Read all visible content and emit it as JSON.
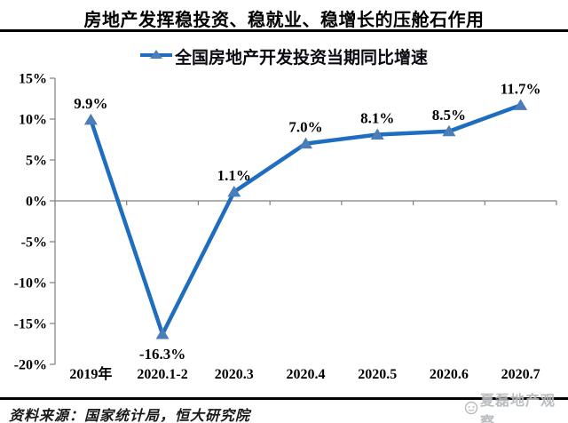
{
  "header": {
    "title": "房地产发挥稳投资、稳就业、稳增长的压舱石作用"
  },
  "legend": {
    "label": "全国房地产开发投资当期同比增速"
  },
  "chart_data": {
    "type": "line",
    "title": "房地产发挥稳投资、稳就业、稳增长的压舱石作用",
    "legend": "全国房地产开发投资当期同比增速",
    "categories": [
      "2019年",
      "2020.1-2",
      "2020.3",
      "2020.4",
      "2020.5",
      "2020.6",
      "2020.7"
    ],
    "values": [
      9.9,
      -16.3,
      1.1,
      7.0,
      8.1,
      8.5,
      11.7
    ],
    "point_labels": [
      "9.9%",
      "-16.3%",
      "1.1%",
      "7.0%",
      "8.1%",
      "8.5%",
      "11.7%"
    ],
    "ylim": [
      -20,
      15
    ],
    "ytick_step": 5,
    "ytick_labels": [
      "15%",
      "10%",
      "5%",
      "0%",
      "-5%",
      "-10%",
      "-15%",
      "-20%"
    ],
    "grid": false,
    "legend_position": "top",
    "colors": {
      "line": "#1F6DBE",
      "marker": "#4B7DB8",
      "axis": "#808080",
      "label_text": "#000000"
    }
  },
  "footer": {
    "source": "资料来源：国家统计局，恒大研究院",
    "watermark": "夏磊地产观察"
  }
}
